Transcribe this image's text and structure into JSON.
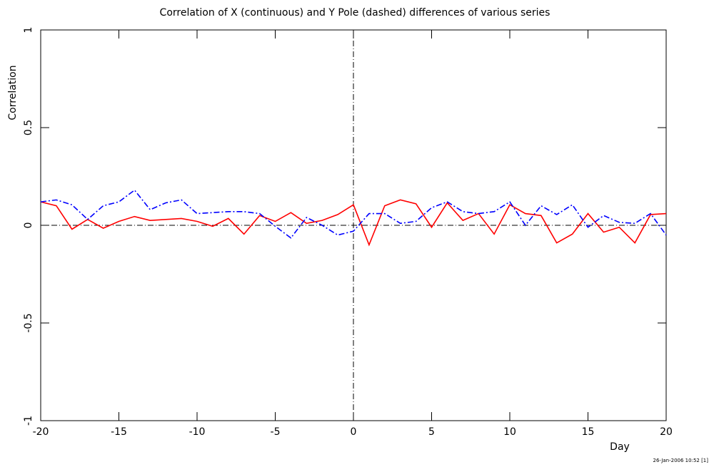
{
  "chart_data": {
    "type": "line",
    "title": "Correlation of X (continuous) and Y Pole (dashed) differences of various series",
    "x_label": "Day",
    "y_label": "Correlation",
    "footer": "26-Jan-2006 10:52 [1]",
    "x": [
      -20,
      -19,
      -18,
      -17,
      -16,
      -15,
      -14,
      -13,
      -12,
      -11,
      -10,
      -9,
      -8,
      -7,
      -6,
      -5,
      -4,
      -3,
      -2,
      -1,
      0,
      1,
      2,
      3,
      4,
      5,
      6,
      7,
      8,
      9,
      10,
      11,
      12,
      13,
      14,
      15,
      16,
      17,
      18,
      19,
      20
    ],
    "series": [
      {
        "color": "#ff0000",
        "dash": "solid",
        "values": [
          0.12,
          0.1,
          -0.02,
          0.03,
          -0.015,
          0.02,
          0.045,
          0.025,
          0.03,
          0.035,
          0.02,
          -0.005,
          0.035,
          -0.045,
          0.05,
          0.02,
          0.065,
          0.01,
          0.025,
          0.055,
          0.105,
          -0.1,
          0.1,
          0.13,
          0.11,
          -0.01,
          0.115,
          0.025,
          0.06,
          -0.045,
          0.105,
          0.06,
          0.05,
          -0.09,
          -0.045,
          0.06,
          -0.035,
          -0.01,
          -0.09,
          0.055,
          0.06
        ]
      },
      {
        "color": "#0000ff",
        "dash": "dash-dot",
        "values": [
          0.12,
          0.13,
          0.105,
          0.03,
          0.1,
          0.12,
          0.18,
          0.08,
          0.115,
          0.13,
          0.06,
          0.065,
          0.07,
          0.07,
          0.06,
          -0.005,
          -0.065,
          0.04,
          0.0,
          -0.05,
          -0.03,
          0.06,
          0.06,
          0.01,
          0.02,
          0.09,
          0.12,
          0.07,
          0.06,
          0.07,
          0.12,
          0.0,
          0.1,
          0.055,
          0.105,
          -0.01,
          0.05,
          0.015,
          0.01,
          0.06,
          -0.05
        ]
      }
    ],
    "xlim": [
      -20,
      20
    ],
    "xticks": [
      -20,
      -15,
      -10,
      -5,
      0,
      5,
      10,
      15,
      20
    ],
    "ylim": [
      -1,
      1
    ],
    "yticks": [
      -1,
      -0.5,
      0,
      0.5,
      1
    ],
    "zero_lines": true,
    "grid": false
  }
}
